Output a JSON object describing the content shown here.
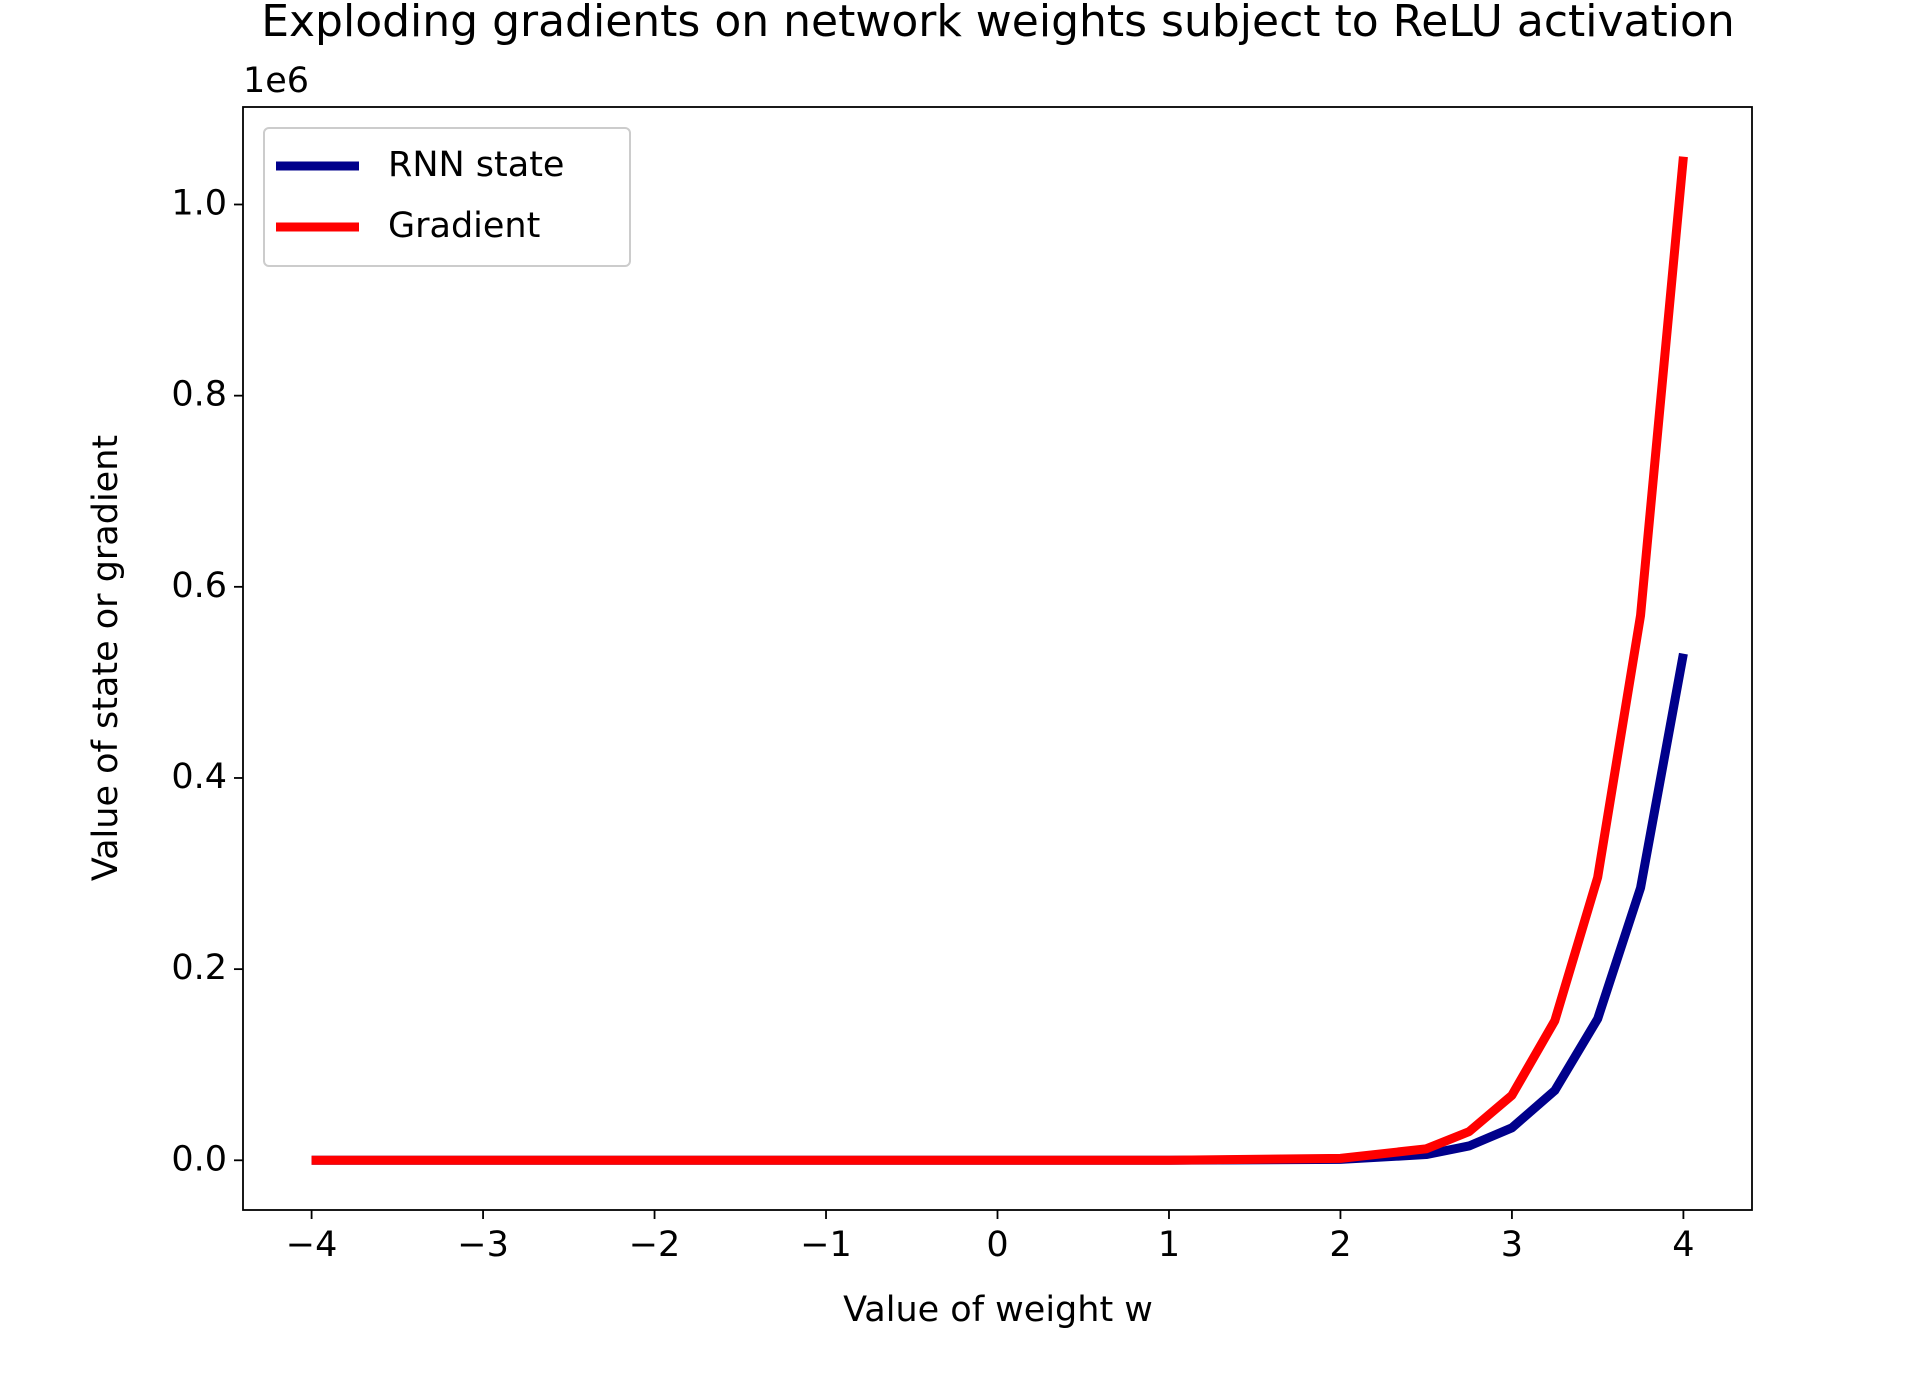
{
  "chart_data": {
    "type": "line",
    "title": "Exploding gradients on network weights subject to ReLU activation",
    "xlabel": "Value of weight w",
    "ylabel": "Value of state or gradient",
    "y_offset_label": "1e6",
    "x": [
      -4,
      -3,
      -2,
      -1,
      0,
      1,
      2,
      2.5,
      2.75,
      3,
      3.25,
      3.5,
      3.75,
      4
    ],
    "series": [
      {
        "name": "RNN state",
        "color": "#00008b",
        "values": [
          0,
          0,
          0,
          0,
          0,
          0,
          0.001,
          0.006,
          0.015,
          0.034,
          0.073,
          0.148,
          0.285,
          0.53
        ]
      },
      {
        "name": "Gradient",
        "color": "#ff0000",
        "values": [
          0,
          0,
          0,
          0,
          0,
          0,
          0.002,
          0.012,
          0.03,
          0.068,
          0.146,
          0.296,
          0.57,
          1.05
        ]
      }
    ],
    "xlim": [
      -4.4,
      4.4
    ],
    "ylim": [
      -0.052,
      1.102
    ],
    "xticks": [
      {
        "value": -4,
        "label": "−4"
      },
      {
        "value": -3,
        "label": "−3"
      },
      {
        "value": -2,
        "label": "−2"
      },
      {
        "value": -1,
        "label": "−1"
      },
      0,
      1,
      2,
      3,
      4
    ],
    "yticks": [
      {
        "value": 0,
        "label": "0.0"
      },
      0.2,
      0.4,
      0.6,
      0.8,
      {
        "value": 1,
        "label": "1.0"
      }
    ],
    "grid": false,
    "legend": "upper left"
  }
}
